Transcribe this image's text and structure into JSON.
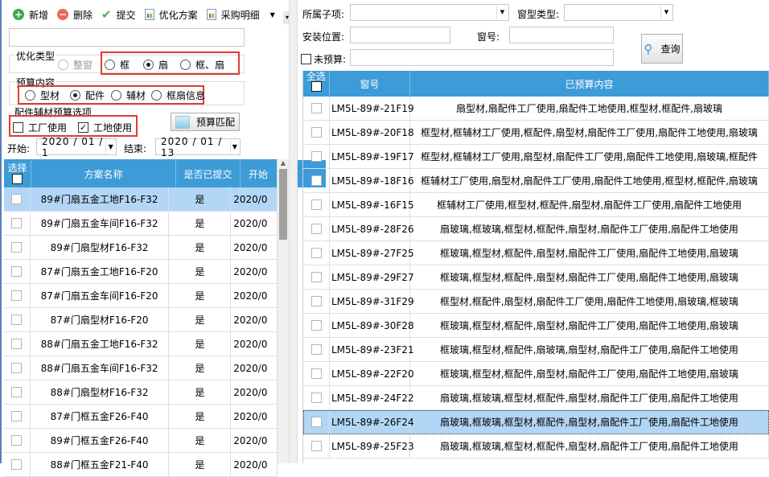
{
  "left": {
    "toolbar": [
      {
        "label": "新增",
        "icon": "add-icon",
        "color": "#3aa84a"
      },
      {
        "label": "删除",
        "icon": "delete-icon",
        "color": "#e86a5a"
      },
      {
        "label": "提交",
        "icon": "check-icon",
        "color": "#4caf50"
      },
      {
        "label": "优化方案",
        "icon": "report-icon"
      },
      {
        "label": "采购明细",
        "icon": "report-icon"
      }
    ],
    "search_value": "",
    "opt_type": {
      "label": "优化类型",
      "options": [
        "整窗",
        "框",
        "扇",
        "框、扇"
      ],
      "selected": "扇",
      "disabled": [
        "整窗"
      ]
    },
    "budget_content": {
      "label": "预算内容",
      "options": [
        "型材",
        "配件",
        "辅材",
        "框扇信息"
      ],
      "selected": "配件"
    },
    "budget_options": {
      "label": "配件辅材预算选项",
      "items": [
        {
          "label": "工厂使用",
          "checked": false
        },
        {
          "label": "工地使用",
          "checked": true
        }
      ]
    },
    "match_button": "预算匹配",
    "start_label": "开始:",
    "start_value": "2020 / 01 / 1",
    "end_label": "结束:",
    "end_value": "2020 / 01 / 13",
    "grid": {
      "headers": [
        "选择",
        "方案名称",
        "是否已提交",
        "开始"
      ],
      "rows": [
        {
          "name": "89#门扇五金工地F16-F32",
          "submitted": "是",
          "date": "2020/0",
          "selected": true
        },
        {
          "name": "89#门扇五金车间F16-F32",
          "submitted": "是",
          "date": "2020/0"
        },
        {
          "name": "89#门扇型材F16-F32",
          "submitted": "是",
          "date": "2020/0"
        },
        {
          "name": "87#门扇五金工地F16-F20",
          "submitted": "是",
          "date": "2020/0"
        },
        {
          "name": "87#门扇五金车间F16-F20",
          "submitted": "是",
          "date": "2020/0"
        },
        {
          "name": "87#门扇型材F16-F20",
          "submitted": "是",
          "date": "2020/0"
        },
        {
          "name": "88#门扇五金工地F16-F32",
          "submitted": "是",
          "date": "2020/0"
        },
        {
          "name": "88#门扇五金车间F16-F32",
          "submitted": "是",
          "date": "2020/0"
        },
        {
          "name": "88#门扇型材F16-F32",
          "submitted": "是",
          "date": "2020/0"
        },
        {
          "name": "87#门框五金F26-F40",
          "submitted": "是",
          "date": "2020/0"
        },
        {
          "name": "89#门框五金F26-F40",
          "submitted": "是",
          "date": "2020/0"
        },
        {
          "name": "88#门框五金F21-F40",
          "submitted": "是",
          "date": "2020/0"
        }
      ]
    }
  },
  "right": {
    "subitem_label": "所属子项:",
    "subitem_value": "",
    "wintype_label": "窗型类型:",
    "wintype_value": "",
    "location_label": "安装位置:",
    "location_value": "",
    "winno_label": "窗号:",
    "winno_value": "",
    "unbudget_label": "未预算:",
    "unbudget_value": "",
    "query_button": "查询",
    "grid": {
      "headers": [
        "全选",
        "窗号",
        "已预算内容"
      ],
      "rows": [
        {
          "no": "LM5L-89#-21F19",
          "content": "扇型材,扇配件工厂使用,扇配件工地使用,框型材,框配件,扇玻璃"
        },
        {
          "no": "LM5L-89#-20F18",
          "content": "框型材,框辅材工厂使用,框配件,扇型材,扇配件工厂使用,扇配件工地使用,扇玻璃"
        },
        {
          "no": "LM5L-89#-19F17",
          "content": "框型材,框辅材工厂使用,扇型材,扇配件工厂使用,扇配件工地使用,扇玻璃,框配件"
        },
        {
          "no": "LM5L-89#-18F16",
          "content": "框辅材工厂使用,扇型材,扇配件工厂使用,扇配件工地使用,框型材,框配件,扇玻璃"
        },
        {
          "no": "LM5L-89#-16F15",
          "content": "框辅材工厂使用,框型材,框配件,扇型材,扇配件工厂使用,扇配件工地使用"
        },
        {
          "no": "LM5L-89#-28F26",
          "content": "扇玻璃,框玻璃,框型材,框配件,扇型材,扇配件工厂使用,扇配件工地使用"
        },
        {
          "no": "LM5L-89#-27F25",
          "content": "框玻璃,框型材,框配件,扇型材,扇配件工厂使用,扇配件工地使用,扇玻璃"
        },
        {
          "no": "LM5L-89#-29F27",
          "content": "框玻璃,框型材,框配件,扇型材,扇配件工厂使用,扇配件工地使用,扇玻璃"
        },
        {
          "no": "LM5L-89#-31F29",
          "content": "框型材,框配件,扇型材,扇配件工厂使用,扇配件工地使用,扇玻璃,框玻璃"
        },
        {
          "no": "LM5L-89#-30F28",
          "content": "框玻璃,框型材,框配件,扇型材,扇配件工厂使用,扇配件工地使用,扇玻璃"
        },
        {
          "no": "LM5L-89#-23F21",
          "content": "框玻璃,框型材,框配件,扇玻璃,扇型材,扇配件工厂使用,扇配件工地使用"
        },
        {
          "no": "LM5L-89#-22F20",
          "content": "框玻璃,框型材,框配件,扇型材,扇配件工厂使用,扇配件工地使用,扇玻璃"
        },
        {
          "no": "LM5L-89#-24F22",
          "content": "扇玻璃,框玻璃,框型材,框配件,扇型材,扇配件工厂使用,扇配件工地使用"
        },
        {
          "no": "LM5L-89#-26F24",
          "content": "扇玻璃,框玻璃,框型材,框配件,扇型材,扇配件工厂使用,扇配件工地使用",
          "selected": true
        },
        {
          "no": "LM5L-89#-25F23",
          "content": "扇玻璃,框玻璃,框型材,框配件,扇型材,扇配件工厂使用,扇配件工地使用"
        }
      ]
    }
  }
}
